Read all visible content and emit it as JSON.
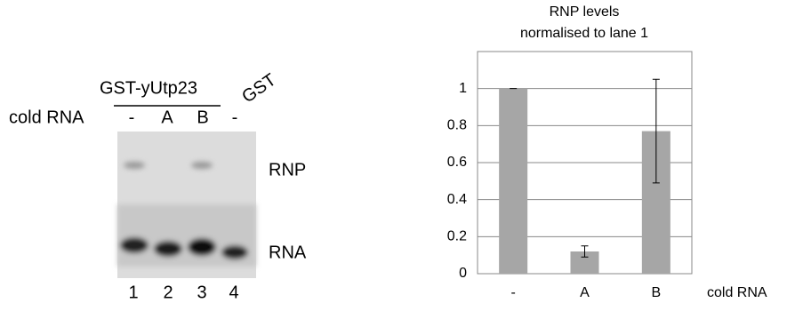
{
  "gel": {
    "construct": "GST-yUtp23",
    "control": "GST",
    "row_label": "cold RNA",
    "lanes": [
      "-",
      "A",
      "B",
      "-"
    ],
    "bands": [
      "RNP",
      "RNA"
    ],
    "lane_numbers": [
      "1",
      "2",
      "3",
      "4"
    ]
  },
  "chart_data": {
    "type": "bar",
    "title": [
      "RNP levels",
      "normalised to lane 1"
    ],
    "categories": [
      "-",
      "A",
      "B"
    ],
    "values": [
      1,
      0.12,
      0.77
    ],
    "errors": [
      0,
      0.03,
      0.28
    ],
    "x_label": "cold RNA",
    "color": "#a6a6a6",
    "ylim": [
      0,
      1.2
    ],
    "yticks": [
      0,
      0.2,
      0.4,
      0.6,
      0.8,
      1
    ],
    "grid": true
  }
}
